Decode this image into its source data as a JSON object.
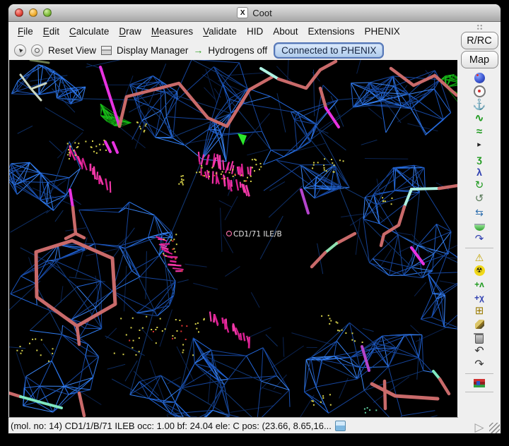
{
  "window": {
    "title": "Coot",
    "x_badge": "X"
  },
  "menu_bar": {
    "items": [
      {
        "label": "File",
        "underline": 0
      },
      {
        "label": "Edit",
        "underline": 0
      },
      {
        "label": "Calculate",
        "underline": 0
      },
      {
        "label": "Draw",
        "underline": 0
      },
      {
        "label": "Measures",
        "underline": 0
      },
      {
        "label": "Validate",
        "underline": 0
      },
      {
        "label": "HID",
        "underline": -1
      },
      {
        "label": "About",
        "underline": -1
      },
      {
        "label": "Extensions",
        "underline": -1
      },
      {
        "label": "PHENIX",
        "underline": -1
      }
    ]
  },
  "toolbar": {
    "reset_view_label": "Reset View",
    "display_manager_label": "Display Manager",
    "hydrogens_label": "Hydrogens off",
    "phenix_button_label": "Connected to PHENIX",
    "hydrogen_arrow_glyph": "→"
  },
  "side_panel": {
    "rrc_label": "R/RC",
    "map_label": "Map",
    "icons": [
      {
        "name": "view-sphere-icon",
        "kind": "css",
        "cls": "i-sphere"
      },
      {
        "name": "recentre-icon",
        "kind": "css",
        "cls": "i-target"
      },
      {
        "name": "anchor-icon",
        "kind": "glyph",
        "glyph": "⚓",
        "color": "#2f6fae",
        "size": 15
      },
      {
        "name": "real-space-refine-icon",
        "kind": "glyph",
        "glyph": "∿",
        "color": "#1f9a1f",
        "bold": 1,
        "size": 15
      },
      {
        "name": "regularize-icon",
        "kind": "glyph",
        "glyph": "≈",
        "color": "#1f9a1f",
        "bold": 1,
        "size": 15
      },
      {
        "name": "expander-triangle-icon",
        "kind": "glyph",
        "glyph": "▸",
        "color": "#222222",
        "size": 11
      },
      {
        "name": "rigid-body-fit-icon",
        "kind": "glyph",
        "glyph": "ʒ",
        "color": "#1f9a1f",
        "bold": 1,
        "size": 14
      },
      {
        "name": "rotate-translate-icon",
        "kind": "glyph",
        "glyph": "λ",
        "color": "#2f3fb0",
        "bold": 1,
        "size": 14
      },
      {
        "name": "rotamers-icon",
        "kind": "glyph",
        "glyph": "↻",
        "color": "#1f9a1f",
        "size": 15
      },
      {
        "name": "edit-chi-angles-icon",
        "kind": "glyph",
        "glyph": "↺",
        "color": "#5a7a5a",
        "size": 15
      },
      {
        "name": "torsion-general-icon",
        "kind": "glyph",
        "glyph": "⇆",
        "color": "#2f6fae",
        "size": 14
      },
      {
        "name": "side-chain-180-icon",
        "kind": "css",
        "cls": "i-half"
      },
      {
        "name": "jed-flip-icon",
        "kind": "glyph",
        "glyph": "↷",
        "color": "#2f3fb0",
        "size": 15
      },
      {
        "kind": "sep"
      },
      {
        "name": "add-terminal-residue-icon",
        "kind": "glyph",
        "glyph": "⚠",
        "color": "#c2a400",
        "size": 14
      },
      {
        "name": "mutate-residue-icon",
        "kind": "css",
        "cls": "i-radiation",
        "glyph": "☢"
      },
      {
        "name": "add-alt-conf-icon",
        "kind": "glyph",
        "glyph": "+ʌ",
        "color": "#1f9a1f",
        "bold": 1,
        "size": 12
      },
      {
        "name": "add-atom-icon",
        "kind": "glyph",
        "glyph": "+χ",
        "color": "#2f3fb0",
        "bold": 1,
        "size": 12
      },
      {
        "name": "pointer-atom-icon",
        "kind": "glyph",
        "glyph": "⊞",
        "color": "#9a7a00",
        "size": 15
      },
      {
        "name": "simple-mutate-brush-icon",
        "kind": "css",
        "cls": "i-brush"
      },
      {
        "name": "delete-item-icon",
        "kind": "css",
        "cls": "i-trash"
      },
      {
        "name": "undo-icon",
        "kind": "glyph",
        "glyph": "↶",
        "color": "#333333",
        "size": 16
      },
      {
        "name": "redo-icon",
        "kind": "glyph",
        "glyph": "↷",
        "color": "#333333",
        "size": 16
      },
      {
        "kind": "sep"
      },
      {
        "name": "ligand-builder-icon",
        "kind": "css",
        "cls": "i-flag"
      },
      {
        "kind": "sep"
      }
    ],
    "bottom_icons": [
      {
        "name": "run-script-icon",
        "kind": "glyph",
        "glyph": "▷",
        "color": "#9a9a9a",
        "size": 17
      }
    ]
  },
  "canvas": {
    "atom_label": "CD1/71 ILE/B",
    "colors": {
      "mesh_blue_bright": "#2f7df2",
      "mesh_blue_mid": "#2368dd",
      "mesh_blue_dim": "#1b54b8",
      "mesh_blue_dark": "#16459c",
      "mesh_background": "#0b2350",
      "mesh_green": "#1ec41e",
      "stick_salmon": "#c96a6a",
      "stick_magenta": "#e832e0",
      "stick_cyan": "#aef2e2",
      "stick_teal": "#7fe8c0",
      "stick_palegreen": "#8fe0b0",
      "stick_purple": "#b444cc",
      "stick_pale": "#cdd8c2",
      "stick_olive": "#6b7a50",
      "fan_pink": "#f238a8",
      "fan_pink_dark": "#d81f90",
      "dot_yellow": "#d8d24a",
      "dot_red": "#e03434",
      "dot_green": "#5fd0a0",
      "label_color": "#e6e6e6",
      "arrow_green": "#2ce82c"
    }
  },
  "status_bar": {
    "text": "(mol. no: 14)  CD1/1/B/71 ILEB occ:  1.00 bf: 24.04 ele:  C pos: (23.66, 8.65,16..."
  }
}
